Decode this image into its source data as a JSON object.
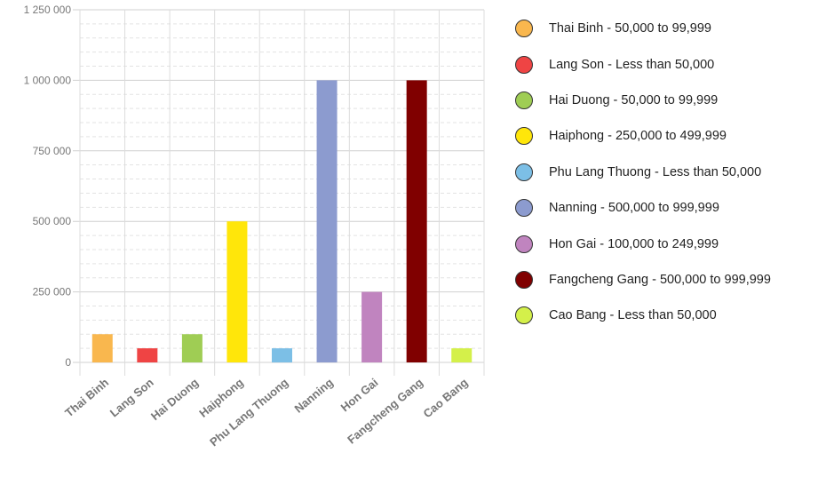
{
  "chart_data": {
    "type": "bar",
    "title": "",
    "xlabel": "",
    "ylabel": "",
    "ylim": [
      0,
      1250000
    ],
    "yticks": [
      0,
      250000,
      500000,
      750000,
      1000000,
      1250000
    ],
    "ytick_labels": [
      "0",
      "250 000",
      "500 000",
      "750 000",
      "1 000 000",
      "1 250 000"
    ],
    "grid": true,
    "legend_position": "right",
    "categories": [
      "Thai Binh",
      "Lang Son",
      "Hai Duong",
      "Haiphong",
      "Phu Lang Thuong",
      "Nanning",
      "Hon Gai",
      "Fangcheng Gang",
      "Cao Bang"
    ],
    "values": [
      99999,
      49999,
      99999,
      499999,
      49999,
      999999,
      249999,
      999999,
      49999
    ],
    "colors": [
      "#f9b74e",
      "#ef4444",
      "#9fcd54",
      "#ffe60a",
      "#7cbfe6",
      "#8c9bcf",
      "#c084bf",
      "#800000",
      "#d4f04a"
    ]
  },
  "legend": {
    "items": [
      "Thai Binh - 50,000 to 99,999",
      "Lang Son - Less than 50,000",
      "Hai Duong - 50,000 to 99,999",
      "Haiphong - 250,000 to 499,999",
      "Phu Lang Thuong - Less than 50,000",
      "Nanning - 500,000 to 999,999",
      "Hon Gai - 100,000 to 249,999",
      "Fangcheng Gang - 500,000 to 999,999",
      "Cao Bang - Less than 50,000"
    ]
  }
}
